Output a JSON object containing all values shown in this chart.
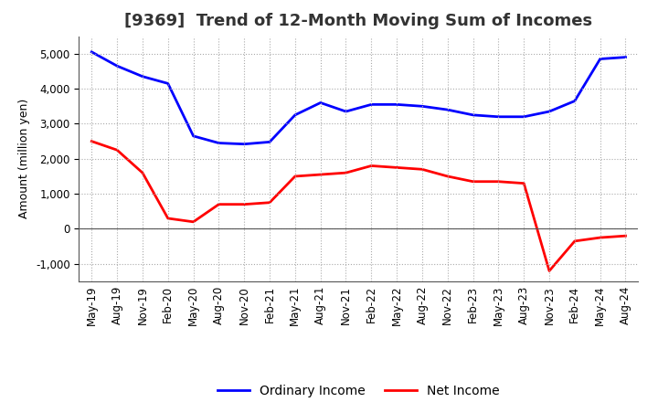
{
  "title": "[9369]  Trend of 12-Month Moving Sum of Incomes",
  "ylabel": "Amount (million yen)",
  "x_labels": [
    "May-19",
    "Aug-19",
    "Nov-19",
    "Feb-20",
    "May-20",
    "Aug-20",
    "Nov-20",
    "Feb-21",
    "May-21",
    "Aug-21",
    "Nov-21",
    "Feb-22",
    "May-22",
    "Aug-22",
    "Nov-22",
    "Feb-23",
    "May-23",
    "Aug-23",
    "Nov-23",
    "Feb-24",
    "May-24",
    "Aug-24"
  ],
  "ordinary_income": [
    5050,
    4650,
    4350,
    4150,
    2650,
    2450,
    2420,
    2480,
    3250,
    3600,
    3350,
    3550,
    3550,
    3500,
    3400,
    3250,
    3200,
    3200,
    3350,
    3650,
    4850,
    4900
  ],
  "net_income": [
    2500,
    2250,
    1600,
    300,
    200,
    700,
    700,
    750,
    1500,
    1550,
    1600,
    1800,
    1750,
    1700,
    1500,
    1350,
    1350,
    1300,
    -1200,
    -350,
    -250,
    -200
  ],
  "ordinary_color": "#0000FF",
  "net_color": "#FF0000",
  "ylim": [
    -1500,
    5500
  ],
  "yticks": [
    -1000,
    0,
    1000,
    2000,
    3000,
    4000,
    5000
  ],
  "background_color": "#FFFFFF",
  "grid_color": "#AAAAAA",
  "title_fontsize": 13,
  "axis_fontsize": 9,
  "tick_fontsize": 8.5,
  "legend_fontsize": 10
}
